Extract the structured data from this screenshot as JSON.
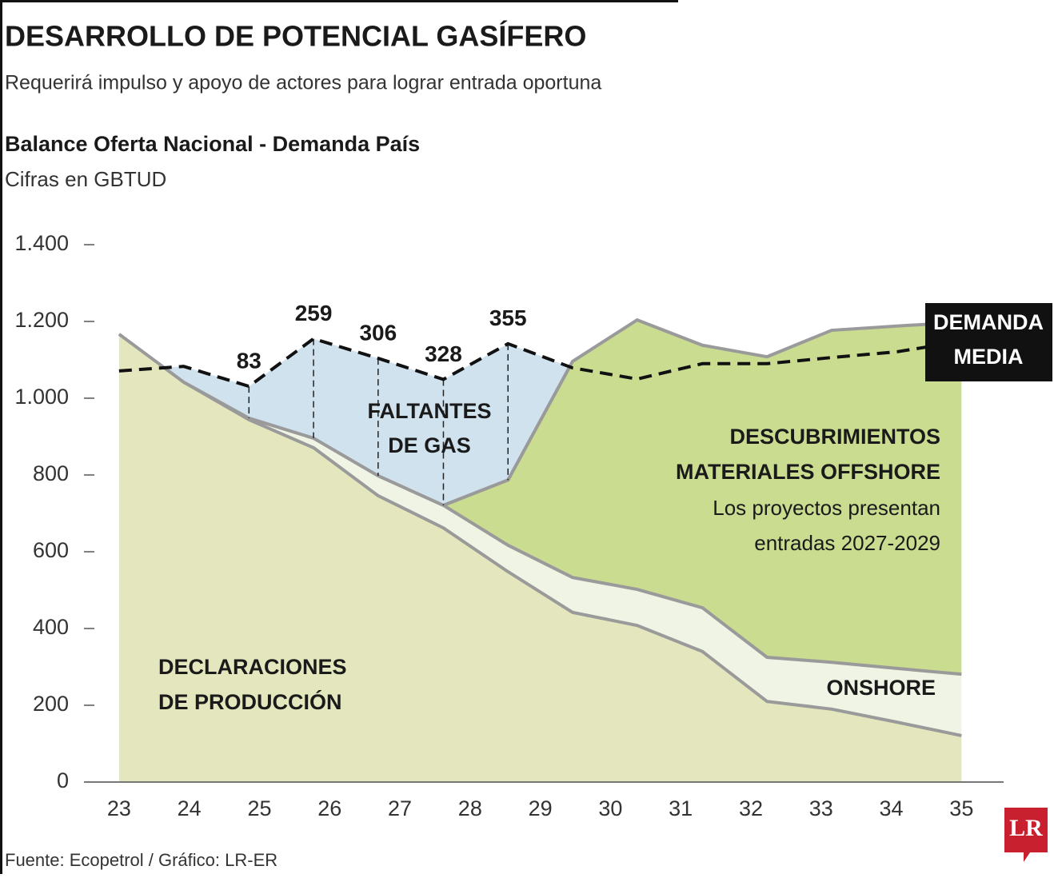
{
  "title": "DESARROLLO DE POTENCIAL GASÍFERO",
  "subtitle": "Requerirá impulso y apoyo de actores para lograr entrada oportuna",
  "source": "Fuente: Ecopetrol / Gráfico: LR-ER",
  "logo": "LR",
  "chart_data": {
    "type": "stacked_area",
    "title": "Balance Oferta Nacional - Demanda País",
    "subtitle": "Cifras en GBTUD",
    "x": [
      23,
      23.92,
      24.85,
      25.77,
      26.69,
      27.62,
      28.54,
      29.46,
      30.38,
      31.31,
      32.23,
      33.15,
      34.08,
      35
    ],
    "xlim": [
      22.5,
      35.6
    ],
    "xticks": [
      23,
      24,
      25,
      26,
      27,
      28,
      29,
      30,
      31,
      32,
      33,
      34,
      35
    ],
    "ylim": [
      0,
      1400
    ],
    "yticks": [
      0,
      200,
      400,
      600,
      800,
      {
        "value": 1000,
        "label": "1.000"
      },
      {
        "value": 1200,
        "label": "1.200"
      },
      {
        "value": 1400,
        "label": "1.400"
      }
    ],
    "series": [
      {
        "name": [
          "DECLARACIONES",
          "DE PRODUCCIÓN"
        ],
        "color": "#e4e7bd",
        "values": [
          1167,
          1042,
          944,
          871,
          746,
          662,
          548,
          442,
          408,
          340,
          210,
          190,
          156,
          121
        ]
      },
      {
        "name": [
          "ONSHORE"
        ],
        "color": "#f0f4e4",
        "values": [
          null,
          0,
          4,
          25,
          52,
          59,
          69,
          91,
          94,
          114,
          115,
          122,
          140,
          160
        ]
      },
      {
        "name": [
          "DESCUBRIMIENTOS",
          "MATERIALES OFFSHORE"
        ],
        "note": [
          "Los proyectos presentan",
          "entradas 2027-2029"
        ],
        "color": "#c9dc90",
        "values": [
          null,
          null,
          null,
          null,
          null,
          0,
          170,
          563,
          702,
          684,
          783,
          865,
          892,
          917
        ]
      }
    ],
    "demand": {
      "name": [
        "DEMANDA",
        "MEDIA"
      ],
      "color": "#111111",
      "values": [
        1071,
        1083,
        1031,
        1155,
        1104,
        1049,
        1142,
        1079,
        1050,
        1090,
        1090,
        1106,
        1121,
        1148
      ]
    },
    "shortfall": {
      "name": [
        "FALTANTES",
        "DE GAS"
      ],
      "color": "#cfe2ee",
      "values": [
        null,
        null,
        83,
        259,
        306,
        328,
        355,
        null,
        null,
        null,
        null,
        null,
        null,
        null
      ]
    }
  }
}
